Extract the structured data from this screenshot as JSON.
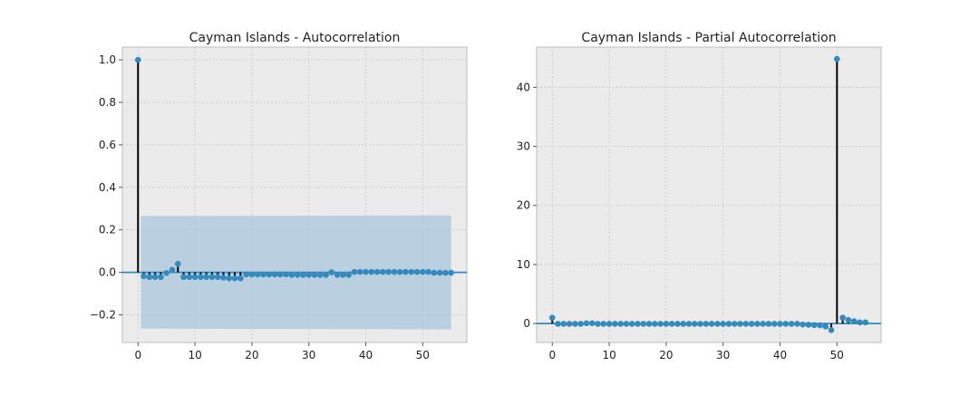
{
  "colors": {
    "axes_bg": "#ebebeb",
    "grid": "#c8c8c8",
    "marker": "#348abd",
    "stem": "#000000",
    "zero_line": "#348abd",
    "conf_band": "#a9c7de"
  },
  "chart_data": [
    {
      "type": "scatter",
      "variant": "stem",
      "title": "Cayman Islands - Autocorrelation",
      "xlabel": "",
      "ylabel": "",
      "xlim": [
        -2.75,
        57.75
      ],
      "ylim": [
        -0.33,
        1.06
      ],
      "xticks": [
        0,
        10,
        20,
        30,
        40,
        50
      ],
      "yticks": [
        -0.2,
        0.0,
        0.2,
        0.4,
        0.6,
        0.8,
        1.0
      ],
      "ytick_labels": [
        "−0.2",
        "0.0",
        "0.2",
        "0.4",
        "0.6",
        "0.8",
        "1.0"
      ],
      "xtick_labels": [
        "0",
        "10",
        "20",
        "30",
        "40",
        "50"
      ],
      "grid": true,
      "confidence_band": {
        "x_start": 0.5,
        "x_end": 55.0,
        "upper": 0.265,
        "lower": -0.265,
        "upper_end": 0.268,
        "lower_end": -0.268
      },
      "x": [
        0,
        1,
        2,
        3,
        4,
        5,
        6,
        7,
        8,
        9,
        10,
        11,
        12,
        13,
        14,
        15,
        16,
        17,
        18,
        19,
        20,
        21,
        22,
        23,
        24,
        25,
        26,
        27,
        28,
        29,
        30,
        31,
        32,
        33,
        34,
        35,
        36,
        37,
        38,
        39,
        40,
        41,
        42,
        43,
        44,
        45,
        46,
        47,
        48,
        49,
        50,
        51,
        52,
        53,
        54,
        55
      ],
      "y": [
        1.0,
        -0.018,
        -0.022,
        -0.022,
        -0.022,
        -0.003,
        0.012,
        0.04,
        -0.022,
        -0.022,
        -0.022,
        -0.022,
        -0.022,
        -0.022,
        -0.022,
        -0.025,
        -0.028,
        -0.028,
        -0.028,
        -0.01,
        -0.01,
        -0.01,
        -0.01,
        -0.01,
        -0.01,
        -0.01,
        -0.01,
        -0.012,
        -0.012,
        -0.012,
        -0.012,
        -0.012,
        -0.012,
        -0.012,
        0.0,
        -0.012,
        -0.012,
        -0.012,
        0.002,
        0.002,
        0.002,
        0.002,
        0.002,
        0.002,
        0.002,
        0.002,
        0.002,
        0.002,
        0.002,
        0.002,
        0.002,
        0.002,
        -0.002,
        -0.002,
        -0.002,
        -0.002
      ]
    },
    {
      "type": "scatter",
      "variant": "stem",
      "title": "Cayman Islands - Partial Autocorrelation",
      "xlabel": "",
      "ylabel": "",
      "xlim": [
        -2.75,
        57.75
      ],
      "ylim": [
        -3.2,
        46.8
      ],
      "xticks": [
        0,
        10,
        20,
        30,
        40,
        50
      ],
      "yticks": [
        0,
        10,
        20,
        30,
        40
      ],
      "ytick_labels": [
        "0",
        "10",
        "20",
        "30",
        "40"
      ],
      "xtick_labels": [
        "0",
        "10",
        "20",
        "30",
        "40",
        "50"
      ],
      "grid": true,
      "x": [
        0,
        1,
        2,
        3,
        4,
        5,
        6,
        7,
        8,
        9,
        10,
        11,
        12,
        13,
        14,
        15,
        16,
        17,
        18,
        19,
        20,
        21,
        22,
        23,
        24,
        25,
        26,
        27,
        28,
        29,
        30,
        31,
        32,
        33,
        34,
        35,
        36,
        37,
        38,
        39,
        40,
        41,
        42,
        43,
        44,
        45,
        46,
        47,
        48,
        49,
        50,
        51,
        52,
        53,
        54,
        55
      ],
      "y": [
        1.0,
        -0.05,
        -0.05,
        -0.05,
        -0.05,
        -0.05,
        0.05,
        0.05,
        -0.05,
        -0.05,
        -0.05,
        -0.05,
        -0.05,
        -0.05,
        -0.05,
        -0.05,
        -0.05,
        -0.05,
        -0.05,
        -0.05,
        -0.05,
        -0.05,
        -0.05,
        -0.05,
        -0.05,
        -0.05,
        -0.05,
        -0.05,
        -0.05,
        -0.05,
        -0.05,
        -0.05,
        -0.05,
        -0.05,
        -0.05,
        -0.05,
        -0.05,
        -0.05,
        -0.05,
        -0.05,
        -0.05,
        -0.05,
        -0.05,
        -0.05,
        -0.15,
        -0.2,
        -0.25,
        -0.3,
        -0.5,
        -1.1,
        44.8,
        1.0,
        0.6,
        0.4,
        0.2,
        0.2
      ]
    }
  ]
}
